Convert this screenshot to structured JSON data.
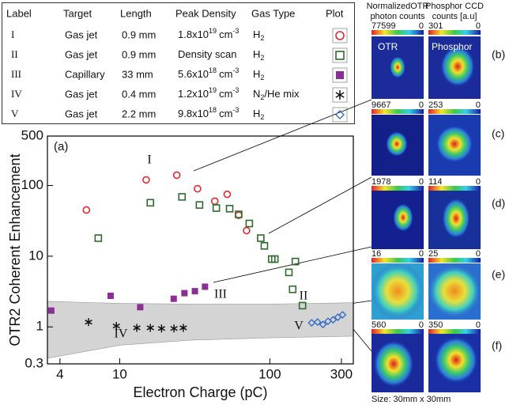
{
  "table": {
    "columns": [
      "Label",
      "Target",
      "Length",
      "Peak Density",
      "Gas Type",
      "Plot"
    ],
    "rows": [
      {
        "label": "I",
        "target": "Gas jet",
        "length": "0.9 mm",
        "density": {
          "base": "1.8x10",
          "exp": "19",
          "unit": "cm",
          "unit_exp": "-3"
        },
        "gas": {
          "base": "H",
          "sub": "2"
        }
      },
      {
        "label": "II",
        "target": "Gas jet",
        "length": "0.9 mm",
        "density": {
          "text": "Density scan"
        },
        "gas": {
          "base": "H",
          "sub": "2"
        }
      },
      {
        "label": "III",
        "target": "Capillary",
        "length": "33 mm",
        "density": {
          "base": "5.6x10",
          "exp": "18",
          "unit": "cm",
          "unit_exp": "-3"
        },
        "gas": {
          "base": "H",
          "sub": "2"
        }
      },
      {
        "label": "IV",
        "target": "Gas jet",
        "length": "0.4 mm",
        "density": {
          "base": "1.2x10",
          "exp": "19",
          "unit": "cm",
          "unit_exp": "-3"
        },
        "gas": {
          "base": "N",
          "sub": "2",
          "rest": "/He mix"
        }
      },
      {
        "label": "V",
        "target": "Gas jet",
        "length": "2.2 mm",
        "density": {
          "base": "9.8x10",
          "exp": "18",
          "unit": "cm",
          "unit_exp": "-3"
        },
        "gas": {
          "base": "H",
          "sub": "2"
        }
      }
    ]
  },
  "chart_data": {
    "type": "scatter",
    "annotation": "(a)",
    "x_label": "Electron Charge (pC)",
    "y_label": "OTR2 Coherent Enhancement",
    "log_x": true,
    "log_y": true,
    "xlim": [
      3.3,
      360
    ],
    "ylim": [
      0.3,
      500
    ],
    "xticks": [
      4,
      10,
      100,
      300
    ],
    "yticks": [
      0.3,
      1,
      10,
      100,
      500
    ],
    "band": {
      "color": "#d4d4d4",
      "x": [
        3.3,
        10,
        30,
        100,
        360
      ],
      "upper": [
        2.3,
        2.15,
        2.1,
        2.1,
        2.2
      ],
      "lower": [
        0.36,
        0.55,
        0.65,
        0.7,
        0.74
      ]
    },
    "series": [
      {
        "name": "I",
        "marker": "circle",
        "color": "#e8262b",
        "x": [
          6,
          15,
          24,
          33,
          43,
          52,
          62,
          70
        ],
        "values": [
          45,
          120,
          140,
          90,
          60,
          75,
          38,
          23
        ]
      },
      {
        "name": "II",
        "marker": "square",
        "color": "#2e6b2e",
        "x": [
          7.2,
          16,
          26,
          34,
          44,
          54,
          62,
          73,
          87,
          92,
          103,
          108,
          134,
          148,
          142,
          165
        ],
        "values": [
          18,
          57,
          69,
          53,
          48,
          47,
          39,
          29,
          18,
          14,
          9.1,
          9.1,
          5.9,
          8.4,
          3.4,
          2.0
        ]
      },
      {
        "name": "III",
        "marker": "filled-square",
        "color": "#8b2f97",
        "x": [
          3.5,
          8.7,
          13.7,
          22.9,
          27,
          31.7,
          37
        ],
        "values": [
          1.7,
          2.75,
          1.9,
          2.5,
          3.0,
          3.2,
          3.7
        ]
      },
      {
        "name": "IV",
        "marker": "star",
        "color": "#111111",
        "x": [
          6.2,
          9.5,
          13,
          16,
          19,
          23,
          26.5
        ],
        "values": [
          1.17,
          1.03,
          0.97,
          0.97,
          0.95,
          0.95,
          0.97
        ]
      },
      {
        "name": "V",
        "marker": "diamond",
        "color": "#3a6fc4",
        "x": [
          190,
          208,
          226,
          244,
          264,
          284,
          305
        ],
        "values": [
          1.14,
          1.17,
          1.08,
          1.2,
          1.26,
          1.37,
          1.48
        ]
      }
    ]
  },
  "panels": {
    "headers": [
      [
        "NormalizedOTR",
        "photon counts"
      ],
      [
        "Phosphor CCD",
        "counts [a.u]"
      ]
    ],
    "inset_labels": [
      "OTR",
      "Phosphor"
    ],
    "rows": [
      {
        "letter": "(b)",
        "otr_max": 77599,
        "otr_min": 0,
        "phos_max": 301,
        "phos_min": 0
      },
      {
        "letter": "(c)",
        "otr_max": 9667,
        "otr_min": 0,
        "phos_max": 253,
        "phos_min": 0
      },
      {
        "letter": "(d)",
        "otr_max": 1978,
        "otr_min": 0,
        "phos_max": 114,
        "phos_min": 0
      },
      {
        "letter": "(e)",
        "otr_max": 16,
        "otr_min": 0,
        "phos_max": 25,
        "phos_min": 0
      },
      {
        "letter": "(f)",
        "otr_max": 560,
        "otr_min": 0,
        "phos_max": 350,
        "phos_min": 0
      }
    ],
    "size_note": "Size: 30mm x 30mm"
  }
}
